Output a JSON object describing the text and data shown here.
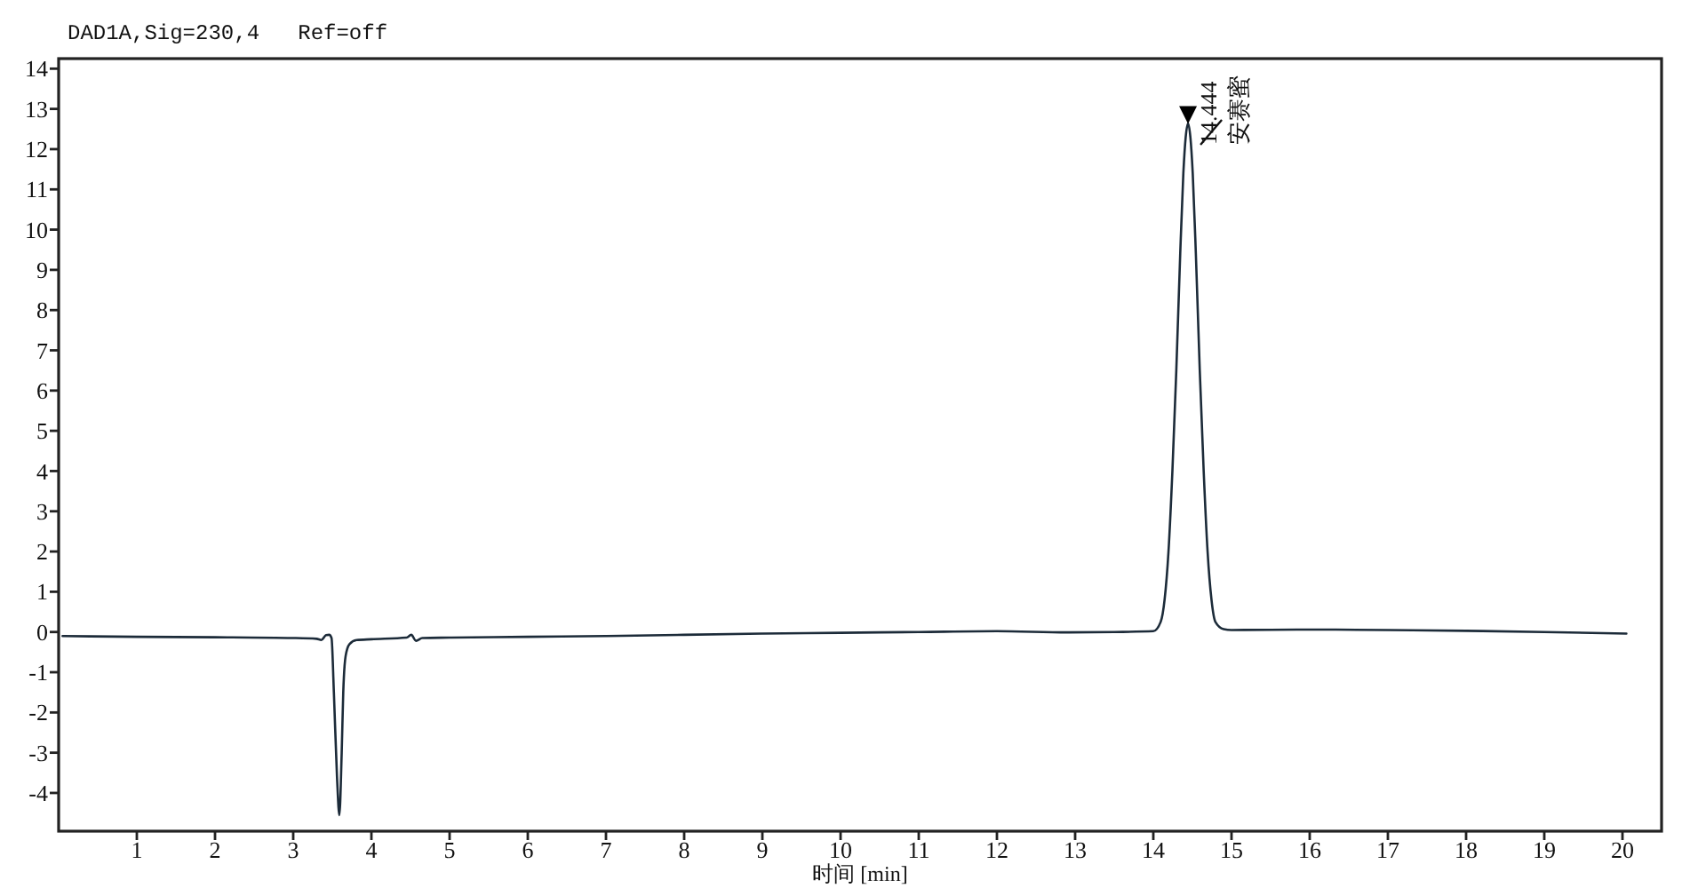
{
  "chart_data": {
    "type": "line",
    "title": "DAD1A,Sig=230,4   Ref=off",
    "xlabel": "时间 [min]",
    "xlim": [
      0,
      20.5
    ],
    "xticks": [
      1,
      2,
      3,
      4,
      5,
      6,
      7,
      8,
      9,
      10,
      11,
      12,
      13,
      14,
      15,
      16,
      17,
      18,
      19,
      20
    ],
    "ylim": [
      -4.95,
      14.25
    ],
    "yticks": [
      -4,
      -3,
      -2,
      -1,
      0,
      1,
      2,
      3,
      4,
      5,
      6,
      7,
      8,
      9,
      10,
      11,
      12,
      13,
      14
    ],
    "annotations": [
      {
        "text": "14.444",
        "x": 14.444,
        "y": 12.64
      },
      {
        "text": "安赛蜜",
        "x": 14.444,
        "y": 12.64
      }
    ],
    "series": [
      {
        "color": "#1c2b39",
        "marker": "none",
        "x": [
          0.05,
          1,
          2,
          3,
          3.3,
          3.36,
          3.42,
          3.46,
          3.49,
          3.52,
          3.56,
          3.59,
          3.62,
          3.64,
          3.67,
          3.72,
          3.81,
          4.0,
          4.45,
          4.51,
          4.57,
          4.65,
          5,
          6,
          7,
          8,
          9,
          10,
          11,
          12,
          12.9,
          13.5,
          14.0,
          14.094,
          14.144,
          14.194,
          14.244,
          14.294,
          14.344,
          14.384,
          14.414,
          14.444,
          14.474,
          14.504,
          14.544,
          14.594,
          14.644,
          14.694,
          14.744,
          14.794,
          14.9,
          15,
          16,
          17,
          18,
          19,
          20.05
        ],
        "values": [
          -0.1,
          -0.12,
          -0.13,
          -0.15,
          -0.17,
          -0.2,
          -0.08,
          -0.07,
          -0.15,
          -1.5,
          -3.6,
          -4.55,
          -3.0,
          -1.5,
          -0.6,
          -0.3,
          -0.2,
          -0.18,
          -0.14,
          -0.07,
          -0.22,
          -0.15,
          -0.14,
          -0.12,
          -0.1,
          -0.07,
          -0.04,
          -0.02,
          0,
          0.02,
          -0.01,
          0.0,
          0.02,
          0.25,
          0.8,
          2.0,
          4.0,
          6.5,
          9.4,
          11.4,
          12.3,
          12.64,
          12.3,
          11.4,
          9.4,
          6.5,
          4.0,
          2.0,
          0.8,
          0.25,
          0.07,
          0.05,
          0.06,
          0.05,
          0.03,
          0.0,
          -0.04
        ]
      },
      {
        "type": "scatter",
        "marker": "triangle",
        "color": "#000000",
        "x": [
          14.444
        ],
        "values": [
          12.85
        ]
      }
    ]
  }
}
